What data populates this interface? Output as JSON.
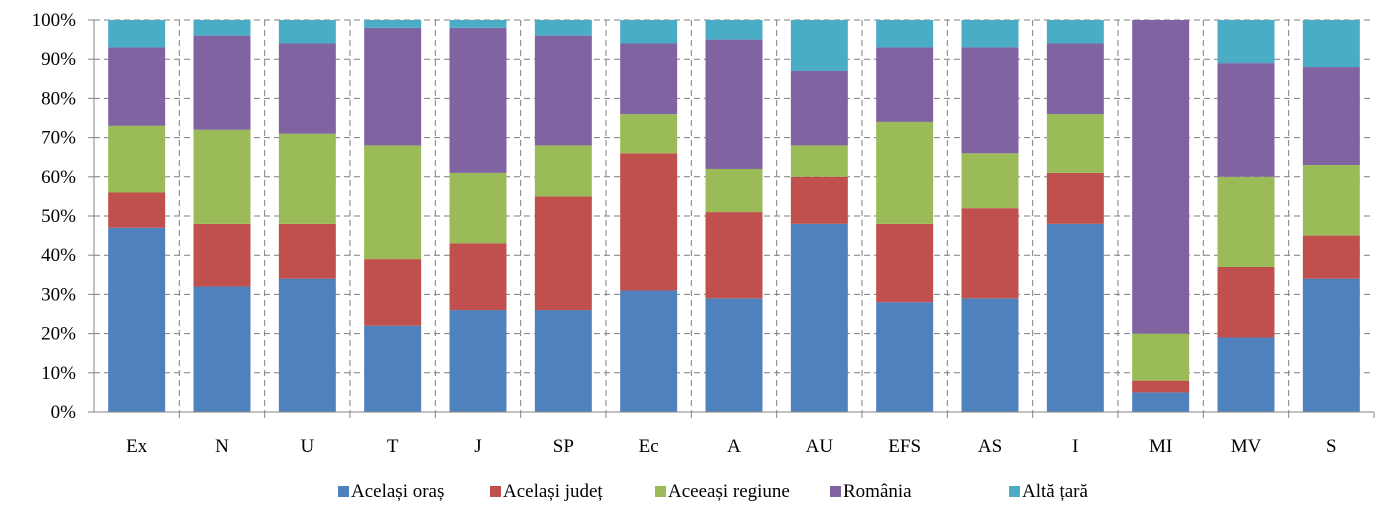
{
  "chart_data": {
    "type": "bar",
    "stacked": true,
    "percent": true,
    "categories": [
      "Ex",
      "N",
      "U",
      "T",
      "J",
      "SP",
      "Ec",
      "A",
      "AU",
      "EFS",
      "AS",
      "I",
      "MI",
      "MV",
      "S"
    ],
    "series": [
      {
        "name": "Același oraș",
        "color": "#4F81BD",
        "values": [
          47,
          32,
          34,
          22,
          26,
          26,
          31,
          29,
          48,
          28,
          29,
          48,
          5,
          19,
          34
        ]
      },
      {
        "name": "Același județ",
        "color": "#C0504D",
        "values": [
          9,
          16,
          14,
          17,
          17,
          29,
          35,
          22,
          12,
          20,
          23,
          13,
          3,
          18,
          11
        ]
      },
      {
        "name": "Aceeași regiune",
        "color": "#9BBB59",
        "values": [
          17,
          24,
          23,
          29,
          18,
          13,
          10,
          11,
          8,
          26,
          14,
          15,
          12,
          23,
          18
        ]
      },
      {
        "name": "România",
        "color": "#8064A2",
        "values": [
          20,
          24,
          23,
          30,
          37,
          28,
          18,
          33,
          19,
          19,
          27,
          18,
          80,
          29,
          25
        ]
      },
      {
        "name": "Altă țară",
        "color": "#4BACC6",
        "values": [
          7,
          4,
          6,
          2,
          2,
          4,
          6,
          5,
          13,
          7,
          7,
          6,
          0,
          11,
          12
        ]
      }
    ],
    "yticks": [
      "0%",
      "10%",
      "20%",
      "30%",
      "40%",
      "50%",
      "60%",
      "70%",
      "80%",
      "90%",
      "100%"
    ],
    "ylim": [
      0,
      100
    ],
    "grid": true,
    "legend": "bottom"
  }
}
